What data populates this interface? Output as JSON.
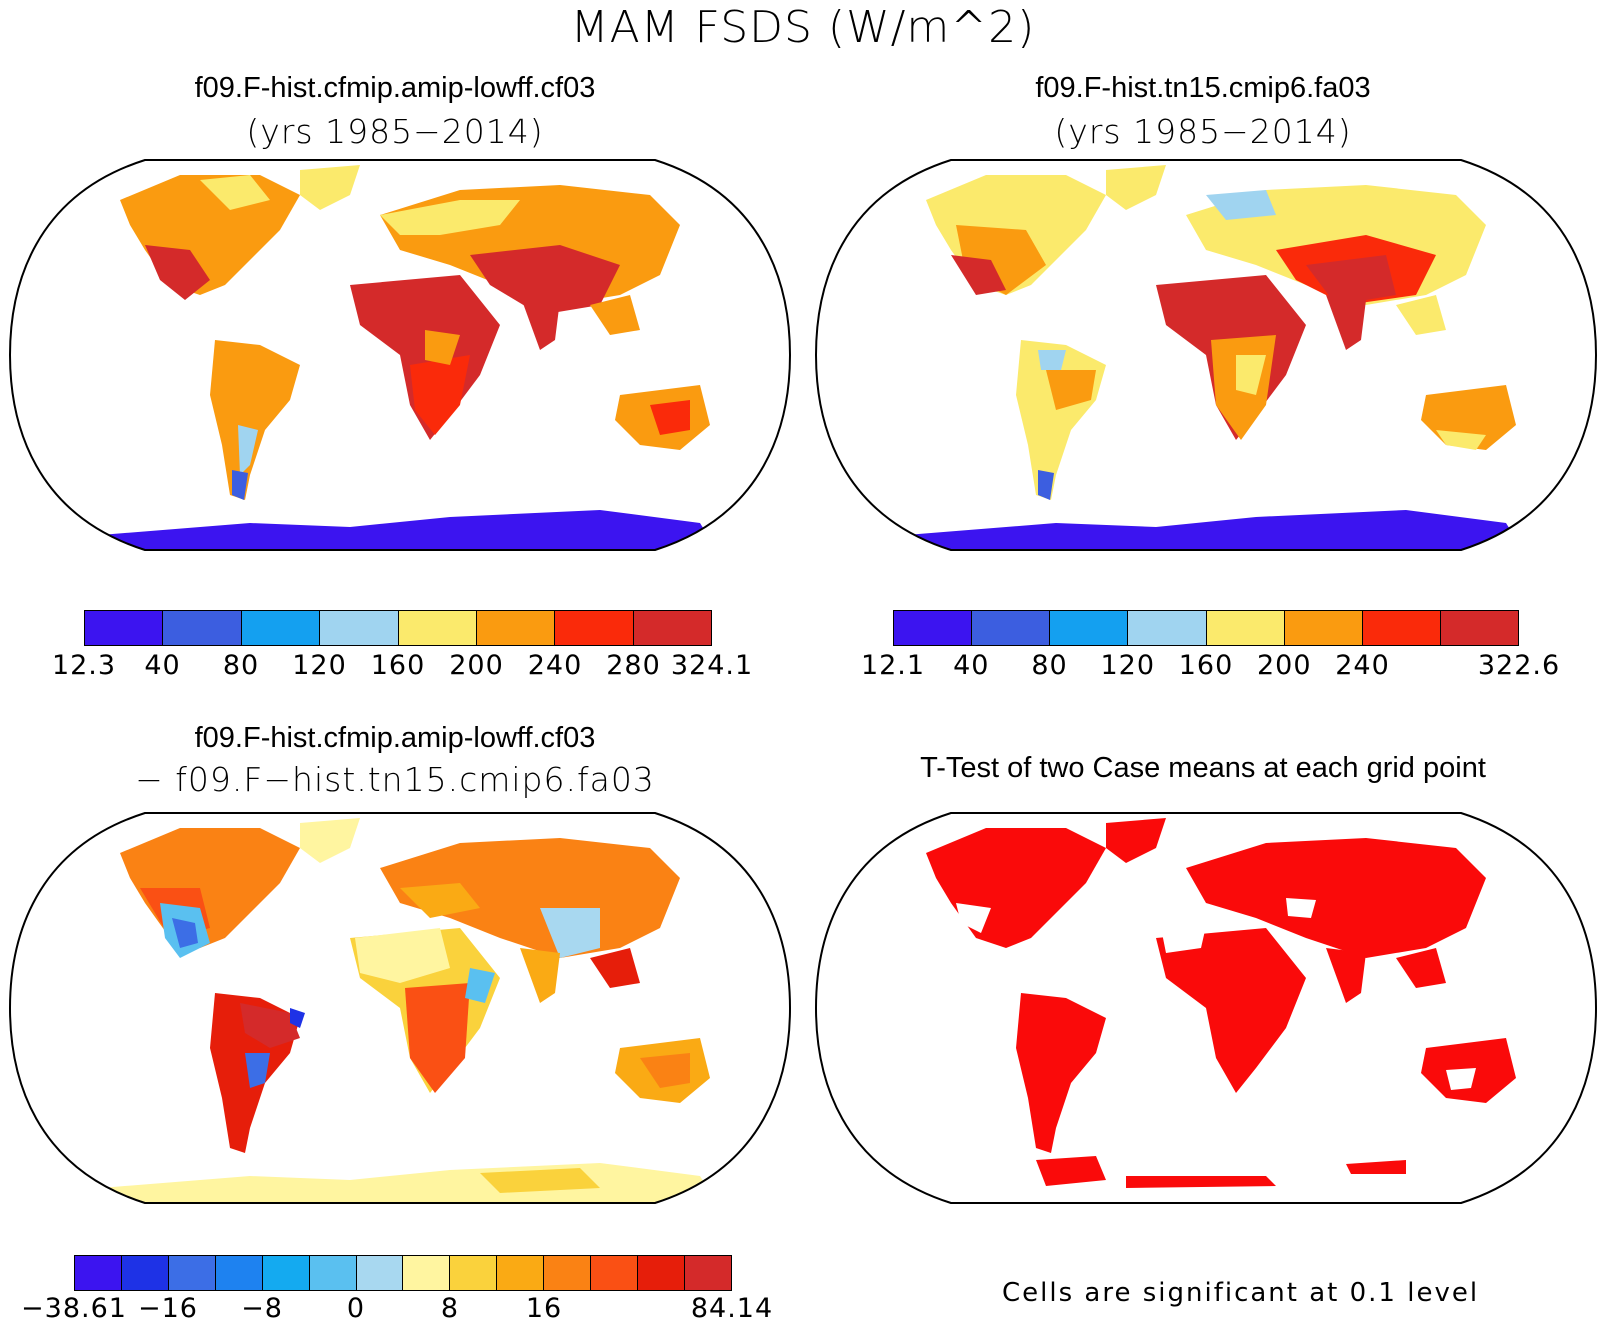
{
  "figure": {
    "title": "MAM FSDS (W/m^2)"
  },
  "panels": [
    {
      "title": "f09.F-hist.cfmip.amip-lowff.cf03",
      "subtitle": "(yrs 1985−2014)",
      "colorbar": {
        "colors": [
          "#3c14f0",
          "#3c5ee0",
          "#14a0f0",
          "#a0d4f0",
          "#fbea6c",
          "#fa9b10",
          "#fa2a0a",
          "#d42a2a"
        ],
        "ticks": [
          "12.3",
          "40",
          "80",
          "120",
          "160",
          "200",
          "240",
          "280",
          "324.1"
        ]
      }
    },
    {
      "title": "f09.F-hist.tn15.cmip6.fa03",
      "subtitle": "(yrs 1985−2014)",
      "colorbar": {
        "colors": [
          "#3c14f0",
          "#3c5ee0",
          "#14a0f0",
          "#a0d4f0",
          "#fbea6c",
          "#fa9b10",
          "#fa2a0a",
          "#d42a2a"
        ],
        "ticks": [
          "12.1",
          "40",
          "80",
          "120",
          "160",
          "200",
          "240",
          "",
          "322.6"
        ]
      }
    },
    {
      "title": "f09.F-hist.cfmip.amip-lowff.cf03",
      "subtitle": "− f09.F−hist.tn15.cmip6.fa03",
      "colorbar": {
        "colors": [
          "#3c14f0",
          "#1e32e6",
          "#3c6ee6",
          "#1e82f0",
          "#14aaf0",
          "#5ac0f0",
          "#a8d8f0",
          "#fff5a0",
          "#fad23c",
          "#faaa14",
          "#fa8214",
          "#fa5014",
          "#e61e0a",
          "#d42a2a"
        ],
        "ticks": [
          "−38.61",
          "",
          "−16",
          "",
          "−8",
          "",
          "0",
          "",
          "8",
          "",
          "16",
          "",
          "",
          "",
          "84.14"
        ]
      }
    },
    {
      "title": "T-Test of two Case means at each grid point",
      "note": "Cells are significant at 0.1 level"
    }
  ]
}
